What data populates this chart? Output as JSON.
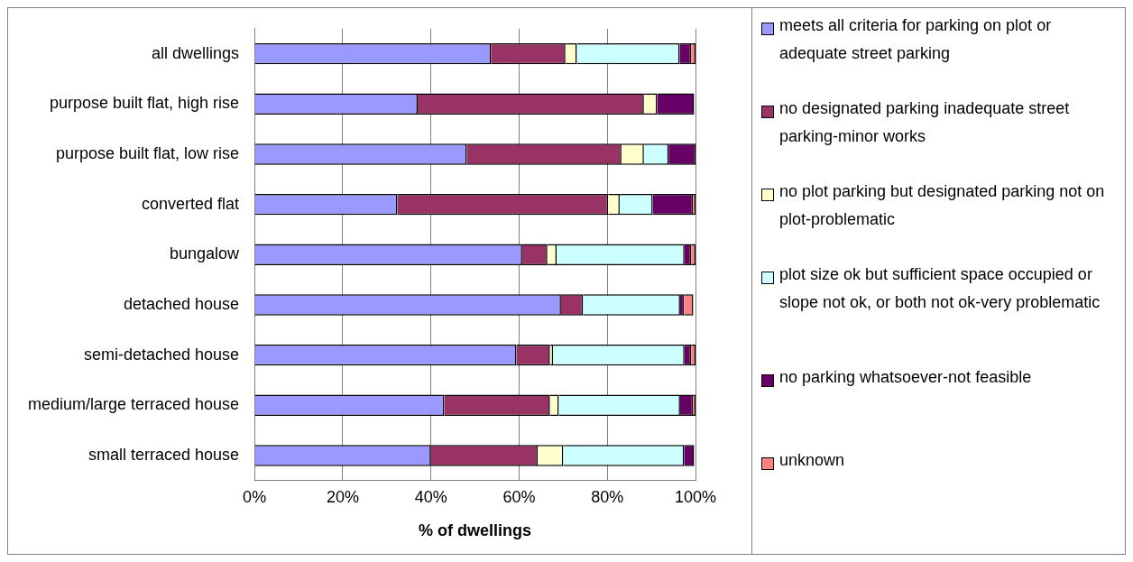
{
  "chart_data": {
    "type": "bar",
    "orientation": "horizontal",
    "stacked": true,
    "xlabel": "% of dwellings",
    "categories": [
      "all dwellings",
      "purpose built flat, high rise",
      "purpose built flat, low rise",
      "converted flat",
      "bungalow",
      "detached house",
      "semi-detached house",
      "medium/large terraced house",
      "small terraced house"
    ],
    "series": [
      {
        "name": "meets all criteria for parking on plot or adequate street parking",
        "color": "#9999ff",
        "values": [
          53.6,
          37.0,
          48.1,
          32.4,
          60.7,
          69.5,
          59.4,
          43.0,
          40.0
        ]
      },
      {
        "name": "no designated parking inadequate street parking-minor works",
        "color": "#993366",
        "values": [
          16.9,
          51.3,
          35.1,
          47.8,
          5.7,
          5.0,
          7.6,
          24.0,
          24.2
        ]
      },
      {
        "name": "no plot parking but designated parking not on plot-problematic",
        "color": "#ffffcc",
        "values": [
          2.6,
          3.0,
          5.1,
          2.6,
          2.1,
          null,
          0.7,
          2.0,
          5.8
        ]
      },
      {
        "name": "plot size ok but sufficient space occupied or slope not ok, or both not ok-very problematic",
        "color": "#ccffff",
        "values": [
          23.3,
          null,
          5.6,
          7.5,
          29.0,
          22.0,
          29.8,
          27.5,
          27.4
        ]
      },
      {
        "name": "no parking whatsoever-not feasible",
        "color": "#660066",
        "values": [
          2.6,
          8.4,
          6.1,
          9.1,
          1.5,
          0.9,
          1.5,
          2.9,
          2.3
        ]
      },
      {
        "name": "unknown",
        "color": "#ff8080",
        "values": [
          1.0,
          null,
          null,
          0.6,
          1.0,
          2.1,
          1.0,
          0.6,
          null
        ]
      }
    ],
    "xlim": [
      0,
      100
    ],
    "xticks": [
      {
        "value": 0,
        "label": "0%"
      },
      {
        "value": 20,
        "label": "20%"
      },
      {
        "value": 40,
        "label": "40%"
      },
      {
        "value": 60,
        "label": "60%"
      },
      {
        "value": 80,
        "label": "80%"
      },
      {
        "value": 100,
        "label": "100%"
      }
    ],
    "grid": "x",
    "legend": "right"
  }
}
